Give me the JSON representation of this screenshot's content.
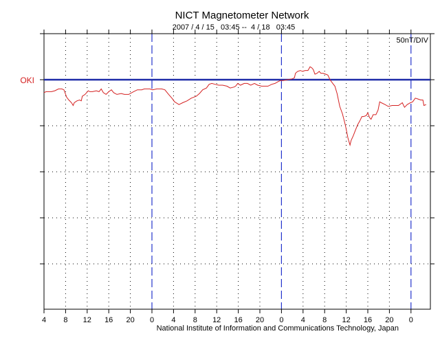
{
  "chart_data": {
    "type": "line",
    "title": "NICT Magnetometer Network",
    "subtitle": "2007 / 4 / 15   03:45 --  4 / 18   03:45",
    "scale_label": "50nT/DIV",
    "station": "OKI",
    "credit": "National Institute of Information and Communications Technology, Japan",
    "xunit": "hours after 2007-04-15 04:00 (UT)",
    "yunit": "nT relative to OKI baseline",
    "xlim": [
      -0.3,
      71.3
    ],
    "ylim": [
      -250,
      50
    ],
    "y_divisions_nT": [
      50,
      0,
      -50,
      -100,
      -150,
      -200
    ],
    "x_ticks": [
      {
        "hour": 0,
        "label": "4"
      },
      {
        "hour": 4,
        "label": "8"
      },
      {
        "hour": 8,
        "label": "12"
      },
      {
        "hour": 12,
        "label": "16"
      },
      {
        "hour": 16,
        "label": "20"
      },
      {
        "hour": 20,
        "label": "0"
      },
      {
        "hour": 24,
        "label": "4"
      },
      {
        "hour": 28,
        "label": "8"
      },
      {
        "hour": 32,
        "label": "12"
      },
      {
        "hour": 36,
        "label": "16"
      },
      {
        "hour": 40,
        "label": "20"
      },
      {
        "hour": 44,
        "label": "0"
      },
      {
        "hour": 48,
        "label": "4"
      },
      {
        "hour": 52,
        "label": "8"
      },
      {
        "hour": 56,
        "label": "12"
      },
      {
        "hour": 60,
        "label": "16"
      },
      {
        "hour": 64,
        "label": "20"
      },
      {
        "hour": 68,
        "label": "0"
      }
    ],
    "day_boundaries": [
      20,
      44,
      68
    ],
    "colors": {
      "trace": "#d42020",
      "baseline": "#1c2aa8",
      "day_line": "#2233cc",
      "station_label": "#d42020"
    },
    "series": [
      {
        "name": "OKI",
        "points": [
          [
            0,
            -14
          ],
          [
            0.4,
            -13
          ],
          [
            1.4,
            -13
          ],
          [
            2,
            -12
          ],
          [
            2.7,
            -10
          ],
          [
            3.3,
            -10
          ],
          [
            3.7,
            -11
          ],
          [
            4.2,
            -19
          ],
          [
            4.6,
            -22
          ],
          [
            5.1,
            -25
          ],
          [
            5.4,
            -28
          ],
          [
            5.6,
            -25
          ],
          [
            6.1,
            -23
          ],
          [
            6.6,
            -22
          ],
          [
            6.9,
            -23
          ],
          [
            7.1,
            -18
          ],
          [
            7.6,
            -16
          ],
          [
            8.2,
            -12
          ],
          [
            8.5,
            -13
          ],
          [
            9,
            -13
          ],
          [
            9.7,
            -12
          ],
          [
            10.2,
            -13
          ],
          [
            10.6,
            -10
          ],
          [
            11,
            -14
          ],
          [
            11.5,
            -16
          ],
          [
            12,
            -13
          ],
          [
            12.5,
            -11
          ],
          [
            12.9,
            -14
          ],
          [
            13.5,
            -16
          ],
          [
            14.3,
            -15
          ],
          [
            14.9,
            -16
          ],
          [
            15.7,
            -16
          ],
          [
            16.6,
            -13
          ],
          [
            17.3,
            -11
          ],
          [
            18.1,
            -11
          ],
          [
            18.6,
            -10
          ],
          [
            19.1,
            -10
          ],
          [
            19.6,
            -10
          ],
          [
            20.1,
            -11
          ],
          [
            20.9,
            -10
          ],
          [
            21.8,
            -10
          ],
          [
            22.4,
            -11
          ],
          [
            23.1,
            -16
          ],
          [
            23.7,
            -20
          ],
          [
            24.2,
            -24
          ],
          [
            25,
            -27
          ],
          [
            25.7,
            -25
          ],
          [
            26.5,
            -23
          ],
          [
            27.3,
            -20
          ],
          [
            28.2,
            -18
          ],
          [
            28.8,
            -15
          ],
          [
            29.4,
            -11
          ],
          [
            30.1,
            -9
          ],
          [
            30.6,
            -5
          ],
          [
            31.1,
            -4
          ],
          [
            31.7,
            -5
          ],
          [
            32.4,
            -6
          ],
          [
            33.1,
            -6
          ],
          [
            33.9,
            -7
          ],
          [
            34.5,
            -9
          ],
          [
            35.2,
            -8
          ],
          [
            35.5,
            -7
          ],
          [
            35.9,
            -4
          ],
          [
            36.4,
            -6
          ],
          [
            37.1,
            -4
          ],
          [
            37.7,
            -4
          ],
          [
            38.3,
            -6
          ],
          [
            39,
            -4
          ],
          [
            39.6,
            -6
          ],
          [
            40.3,
            -7
          ],
          [
            40.9,
            -7
          ],
          [
            41.5,
            -7
          ],
          [
            42.2,
            -5
          ],
          [
            42.8,
            -4
          ],
          [
            43.4,
            -2
          ],
          [
            43.8,
            -1
          ],
          [
            44.3,
            -1
          ],
          [
            45.1,
            0
          ],
          [
            46,
            1
          ],
          [
            46.4,
            2
          ],
          [
            46.6,
            7
          ],
          [
            47,
            9
          ],
          [
            47.5,
            10
          ],
          [
            47.9,
            9
          ],
          [
            48.4,
            10
          ],
          [
            48.9,
            10
          ],
          [
            49.3,
            14
          ],
          [
            49.6,
            13
          ],
          [
            49.9,
            11
          ],
          [
            50.2,
            6
          ],
          [
            50.6,
            7
          ],
          [
            51,
            9
          ],
          [
            51.3,
            7
          ],
          [
            51.7,
            7
          ],
          [
            52.2,
            6
          ],
          [
            52.6,
            5
          ],
          [
            53,
            0
          ],
          [
            53.5,
            -4
          ],
          [
            53.9,
            -7
          ],
          [
            54.3,
            -15
          ],
          [
            54.8,
            -29
          ],
          [
            55.3,
            -37
          ],
          [
            55.7,
            -46
          ],
          [
            55.9,
            -51
          ],
          [
            56.3,
            -63
          ],
          [
            56.6,
            -69
          ],
          [
            56.7,
            -71
          ],
          [
            56.9,
            -66
          ],
          [
            57.3,
            -61
          ],
          [
            57.7,
            -55
          ],
          [
            58.1,
            -49
          ],
          [
            58.5,
            -45
          ],
          [
            58.9,
            -40
          ],
          [
            59.2,
            -40
          ],
          [
            59.7,
            -39
          ],
          [
            60,
            -36
          ],
          [
            60.3,
            -41
          ],
          [
            60.6,
            -43
          ],
          [
            61,
            -38
          ],
          [
            61.5,
            -38
          ],
          [
            61.9,
            -33
          ],
          [
            62.2,
            -24
          ],
          [
            62.5,
            -25
          ],
          [
            63.2,
            -27
          ],
          [
            63.8,
            -29
          ],
          [
            64.5,
            -28
          ],
          [
            65.1,
            -28
          ],
          [
            65.7,
            -28
          ],
          [
            66.4,
            -25
          ],
          [
            66.8,
            -30
          ],
          [
            67.3,
            -27
          ],
          [
            67.9,
            -25
          ],
          [
            68.3,
            -24
          ],
          [
            68.8,
            -20
          ],
          [
            69.3,
            -21
          ],
          [
            69.8,
            -22
          ],
          [
            70.2,
            -22
          ],
          [
            70.4,
            -28
          ],
          [
            70.8,
            -27
          ]
        ]
      }
    ]
  }
}
